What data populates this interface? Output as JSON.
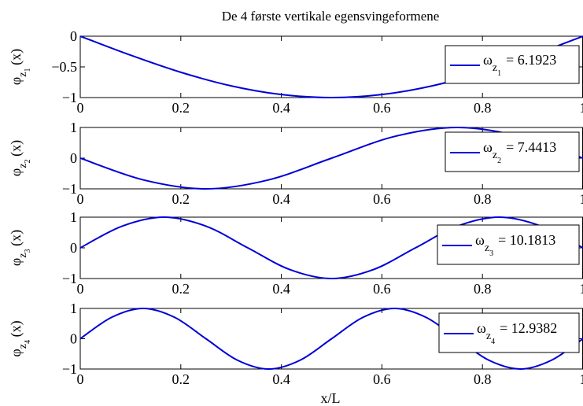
{
  "chart_data": [
    {
      "type": "line",
      "title": "De 4 første vertikale egensvingeformene",
      "ylabel": "φ_{z_1}(x)",
      "xlabel": "",
      "xlim": [
        0,
        1
      ],
      "ylim": [
        -1,
        0
      ],
      "xticks": [
        "0",
        "0.2",
        "0.4",
        "0.6",
        "0.8",
        "1"
      ],
      "yticks": [
        "-1",
        "-0.5",
        "0"
      ],
      "line_color": "#0000d8",
      "series": [
        {
          "name": "ω_{z_1} = 6.1923",
          "legend_text": "= 6.1923",
          "subscript": "1",
          "x": [
            0,
            0.1,
            0.2,
            0.3,
            0.4,
            0.5,
            0.6,
            0.7,
            0.8,
            0.9,
            1
          ],
          "y": [
            0,
            -0.309,
            -0.588,
            -0.809,
            -0.951,
            -1,
            -0.951,
            -0.809,
            -0.588,
            -0.309,
            0
          ]
        }
      ]
    },
    {
      "type": "line",
      "title": "",
      "ylabel": "φ_{z_2}(x)",
      "xlabel": "",
      "xlim": [
        0,
        1
      ],
      "ylim": [
        -1,
        1
      ],
      "xticks": [
        "0",
        "0.2",
        "0.4",
        "0.6",
        "0.8",
        "1"
      ],
      "yticks": [
        "-1",
        "0",
        "1"
      ],
      "line_color": "#0000d8",
      "series": [
        {
          "name": "ω_{z_2} = 7.4413",
          "legend_text": "= 7.4413",
          "subscript": "2",
          "x": [
            0,
            0.125,
            0.25,
            0.375,
            0.5,
            0.625,
            0.75,
            0.875,
            1
          ],
          "y": [
            0,
            -0.707,
            -1,
            -0.707,
            0,
            0.707,
            1,
            0.707,
            0
          ]
        }
      ]
    },
    {
      "type": "line",
      "title": "",
      "ylabel": "φ_{z_3}(x)",
      "xlabel": "",
      "xlim": [
        0,
        1
      ],
      "ylim": [
        -1,
        1
      ],
      "xticks": [
        "0",
        "0.2",
        "0.4",
        "0.6",
        "0.8",
        "1"
      ],
      "yticks": [
        "-1",
        "0",
        "1"
      ],
      "line_color": "#0000d8",
      "series": [
        {
          "name": "ω_{z_3} = 10.1813",
          "legend_text": "= 10.1813",
          "subscript": "3",
          "x": [
            0,
            0.0833,
            0.1667,
            0.25,
            0.3333,
            0.4167,
            0.5,
            0.5833,
            0.6667,
            0.75,
            0.8333,
            0.9167,
            1
          ],
          "y": [
            0,
            0.707,
            1,
            0.707,
            0,
            -0.707,
            -1,
            -0.707,
            0,
            0.707,
            1,
            0.707,
            0
          ]
        }
      ]
    },
    {
      "type": "line",
      "title": "",
      "ylabel": "φ_{z_4}(x)",
      "xlabel": "x/L",
      "xlim": [
        0,
        1
      ],
      "ylim": [
        -1,
        1
      ],
      "xticks": [
        "0",
        "0.2",
        "0.4",
        "0.6",
        "0.8",
        "1"
      ],
      "yticks": [
        "-1",
        "0",
        "1"
      ],
      "line_color": "#0000d8",
      "series": [
        {
          "name": "ω_{z_4} = 12.9382",
          "legend_text": "= 12.9382",
          "subscript": "4",
          "x": [
            0,
            0.0625,
            0.125,
            0.1875,
            0.25,
            0.3125,
            0.375,
            0.4375,
            0.5,
            0.5625,
            0.625,
            0.6875,
            0.75,
            0.8125,
            0.875,
            0.9375,
            1
          ],
          "y": [
            0,
            0.707,
            1,
            0.707,
            0,
            -0.707,
            -1,
            -0.707,
            0,
            0.707,
            1,
            0.707,
            0,
            -0.707,
            -1,
            -0.707,
            0
          ]
        }
      ]
    }
  ]
}
